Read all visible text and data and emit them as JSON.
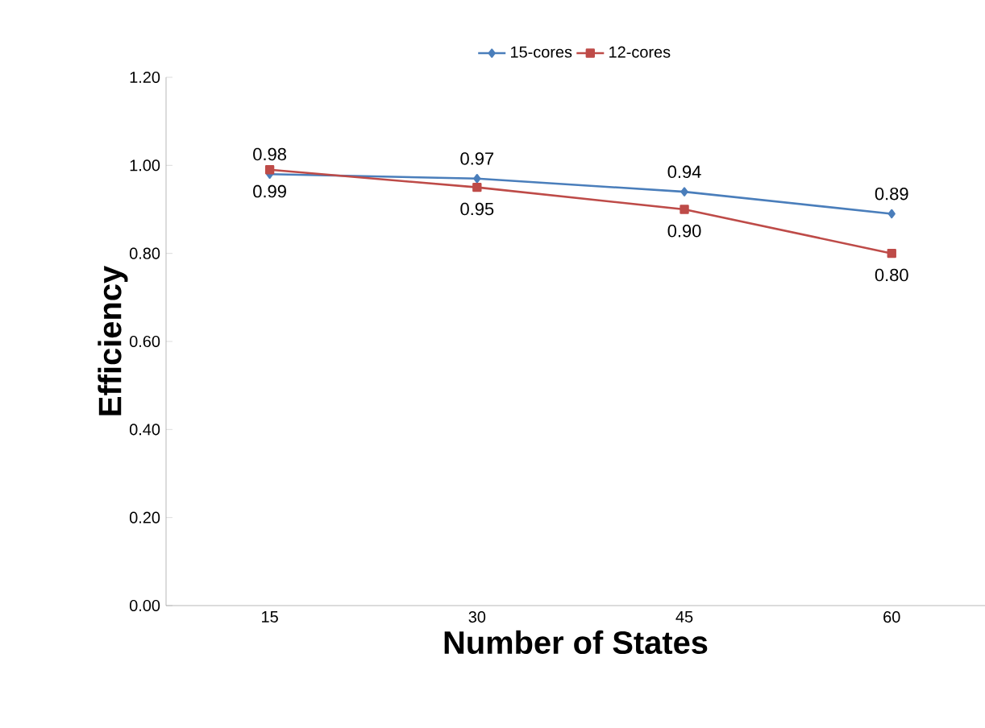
{
  "chart_data": {
    "type": "line",
    "xlabel": "Number of States",
    "ylabel": "Efficiency",
    "categories": [
      "15",
      "30",
      "45",
      "60"
    ],
    "series": [
      {
        "name": "15-cores",
        "color": "#4a7ebb",
        "marker": "diamond",
        "values": [
          0.98,
          0.97,
          0.94,
          0.89
        ],
        "value_labels": [
          "0.98",
          "0.97",
          "0.94",
          "0.89"
        ]
      },
      {
        "name": "12-cores",
        "color": "#be4b48",
        "marker": "square",
        "values": [
          0.99,
          0.95,
          0.9,
          0.8
        ],
        "value_labels": [
          "0.99",
          "0.95",
          "0.90",
          "0.80"
        ]
      }
    ],
    "ylim": [
      0,
      1.2
    ],
    "yticks": [
      {
        "value": 0,
        "label": "0.00"
      },
      {
        "value": 0.2,
        "label": "0.20"
      },
      {
        "value": 0.4,
        "label": "0.40"
      },
      {
        "value": 0.6,
        "label": "0.60"
      },
      {
        "value": 0.8,
        "label": "0.80"
      },
      {
        "value": 1.0,
        "label": "1.00"
      },
      {
        "value": 1.2,
        "label": "1.20"
      }
    ],
    "legend": "top",
    "grid": false
  }
}
